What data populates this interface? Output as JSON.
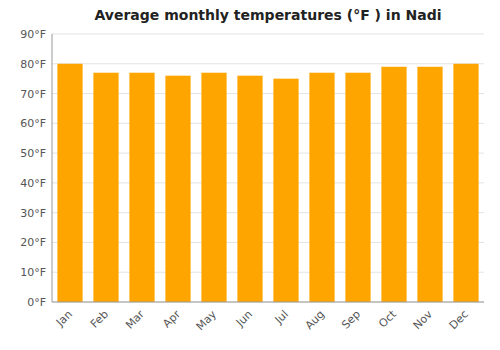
{
  "chart_data": {
    "type": "bar",
    "title": "Average monthly temperatures (°F ) in Nadi",
    "categories": [
      "Jan",
      "Feb",
      "Mar",
      "Apr",
      "May",
      "Jun",
      "Jul",
      "Aug",
      "Sep",
      "Oct",
      "Nov",
      "Dec"
    ],
    "values": [
      80,
      77,
      77,
      76,
      77,
      76,
      75,
      77,
      77,
      79,
      79,
      80
    ],
    "color": "#FFA500",
    "ylim": [
      0,
      90
    ],
    "yticks": [
      {
        "value": 0,
        "label": "0°F"
      },
      {
        "value": 10,
        "label": "10°F"
      },
      {
        "value": 20,
        "label": "20°F"
      },
      {
        "value": 30,
        "label": "30°F"
      },
      {
        "value": 40,
        "label": "40°F"
      },
      {
        "value": 50,
        "label": "50°F"
      },
      {
        "value": 60,
        "label": "60°F"
      },
      {
        "value": 70,
        "label": "70°F"
      },
      {
        "value": 80,
        "label": "80°F"
      },
      {
        "value": 90,
        "label": "90°F"
      }
    ],
    "grid": true
  }
}
